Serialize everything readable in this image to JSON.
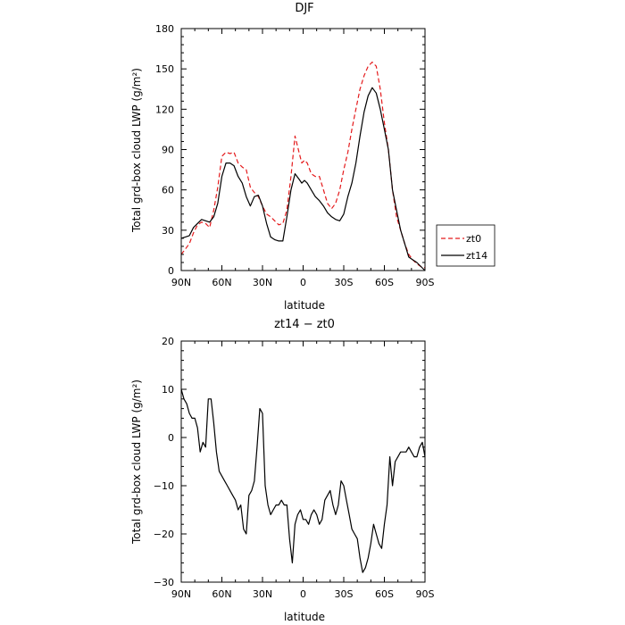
{
  "chart_data": [
    {
      "type": "line",
      "title": "DJF",
      "xlabel": "latitude",
      "ylabel": "Total grd-box cloud LWP (g/m²)",
      "xlim": [
        90,
        -90
      ],
      "ylim": [
        0,
        180
      ],
      "x_ticks": [
        90,
        60,
        30,
        0,
        -30,
        -60,
        -90
      ],
      "x_tick_labels": [
        "90N",
        "60N",
        "30N",
        "0",
        "30S",
        "60S",
        "90S"
      ],
      "y_ticks": [
        0,
        30,
        60,
        90,
        120,
        150,
        180
      ],
      "y_tick_labels": [
        "0",
        "30",
        "60",
        "90",
        "120",
        "150",
        "180"
      ],
      "legend": {
        "placement": "outside-right"
      },
      "series": [
        {
          "name": "zt0",
          "color": "#e41a1c",
          "dash": "dashed",
          "x": [
            90,
            87,
            84,
            81,
            78,
            75,
            72,
            69,
            66,
            63,
            60,
            57,
            54,
            51,
            48,
            45,
            42,
            39,
            36,
            33,
            30,
            27,
            24,
            21,
            18,
            15,
            12,
            9,
            6,
            3,
            1,
            -1,
            -3,
            -6,
            -9,
            -12,
            -15,
            -18,
            -21,
            -24,
            -27,
            -30,
            -33,
            -36,
            -39,
            -42,
            -45,
            -48,
            -51,
            -54,
            -57,
            -60,
            -63,
            -66,
            -69,
            -72,
            -75,
            -78,
            -81,
            -84,
            -87,
            -90
          ],
          "y": [
            12,
            16,
            20,
            28,
            34,
            36,
            35,
            32,
            45,
            62,
            85,
            88,
            87,
            88,
            80,
            77,
            75,
            62,
            58,
            55,
            48,
            42,
            40,
            37,
            34,
            35,
            45,
            70,
            100,
            88,
            80,
            82,
            80,
            72,
            70,
            70,
            60,
            50,
            46,
            50,
            60,
            75,
            88,
            105,
            120,
            135,
            145,
            152,
            155,
            152,
            135,
            110,
            90,
            60,
            40,
            30,
            20,
            12,
            8,
            5,
            3,
            2
          ]
        },
        {
          "name": "zt14",
          "color": "#000000",
          "dash": "solid",
          "x": [
            90,
            87,
            84,
            81,
            78,
            75,
            72,
            69,
            66,
            63,
            60,
            57,
            54,
            51,
            48,
            45,
            42,
            39,
            36,
            33,
            30,
            27,
            24,
            21,
            18,
            15,
            12,
            9,
            6,
            3,
            1,
            -1,
            -3,
            -6,
            -9,
            -12,
            -15,
            -18,
            -21,
            -24,
            -27,
            -30,
            -33,
            -36,
            -39,
            -42,
            -45,
            -48,
            -51,
            -54,
            -57,
            -60,
            -63,
            -66,
            -69,
            -72,
            -75,
            -78,
            -81,
            -84,
            -87,
            -90
          ],
          "y": [
            24,
            25,
            26,
            32,
            35,
            38,
            37,
            36,
            40,
            50,
            70,
            80,
            80,
            78,
            70,
            65,
            55,
            48,
            55,
            56,
            48,
            35,
            25,
            23,
            22,
            22,
            40,
            60,
            72,
            68,
            65,
            67,
            65,
            60,
            55,
            52,
            48,
            43,
            40,
            38,
            37,
            42,
            55,
            65,
            80,
            100,
            118,
            130,
            136,
            132,
            120,
            105,
            90,
            60,
            45,
            30,
            20,
            10,
            8,
            6,
            3,
            0
          ]
        }
      ]
    },
    {
      "type": "line",
      "title": "zt14 − zt0",
      "xlabel": "latitude",
      "ylabel": "Total grd-box cloud LWP (g/m²)",
      "xlim": [
        90,
        -90
      ],
      "ylim": [
        -30,
        20
      ],
      "x_ticks": [
        90,
        60,
        30,
        0,
        -30,
        -60,
        -90
      ],
      "x_tick_labels": [
        "90N",
        "60N",
        "30N",
        "0",
        "30S",
        "60S",
        "90S"
      ],
      "y_ticks": [
        -30,
        -20,
        -10,
        0,
        10,
        20
      ],
      "y_tick_labels": [
        "−30",
        "−20",
        "−10",
        "0",
        "10",
        "20"
      ],
      "series": [
        {
          "color": "#000000",
          "dash": "solid",
          "x": [
            90,
            88,
            86,
            84,
            82,
            80,
            78,
            76,
            74,
            72,
            70,
            68,
            66,
            64,
            62,
            60,
            58,
            56,
            54,
            52,
            50,
            48,
            46,
            44,
            42,
            40,
            38,
            36,
            34,
            32,
            30,
            28,
            26,
            24,
            22,
            20,
            18,
            16,
            14,
            12,
            10,
            8,
            6,
            4,
            2,
            0,
            -2,
            -4,
            -6,
            -8,
            -10,
            -12,
            -14,
            -16,
            -18,
            -20,
            -22,
            -24,
            -26,
            -28,
            -30,
            -32,
            -34,
            -36,
            -38,
            -40,
            -42,
            -44,
            -46,
            -48,
            -50,
            -52,
            -54,
            -56,
            -58,
            -60,
            -62,
            -64,
            -66,
            -68,
            -70,
            -72,
            -74,
            -76,
            -78,
            -80,
            -82,
            -84,
            -86,
            -88,
            -90
          ],
          "y": [
            10,
            8,
            7,
            5,
            4,
            4,
            2,
            -3,
            -1,
            -2,
            8,
            8,
            3,
            -3,
            -7,
            -8,
            -9,
            -10,
            -11,
            -12,
            -13,
            -15,
            -14,
            -19,
            -20,
            -12,
            -11,
            -9,
            -2,
            6,
            5,
            -10,
            -14,
            -16,
            -15,
            -14,
            -14,
            -13,
            -14,
            -14,
            -21,
            -26,
            -18,
            -16,
            -15,
            -17,
            -17,
            -18,
            -16,
            -15,
            -16,
            -18,
            -17,
            -13,
            -12,
            -11,
            -14,
            -16,
            -14,
            -9,
            -10,
            -13,
            -16,
            -19,
            -20,
            -21,
            -25,
            -28,
            -27,
            -25,
            -22,
            -18,
            -20,
            -22,
            -23,
            -18,
            -14,
            -4,
            -10,
            -5,
            -4,
            -3,
            -3,
            -3,
            -2,
            -3,
            -4,
            -4,
            -2,
            -1,
            -4
          ]
        }
      ]
    }
  ]
}
